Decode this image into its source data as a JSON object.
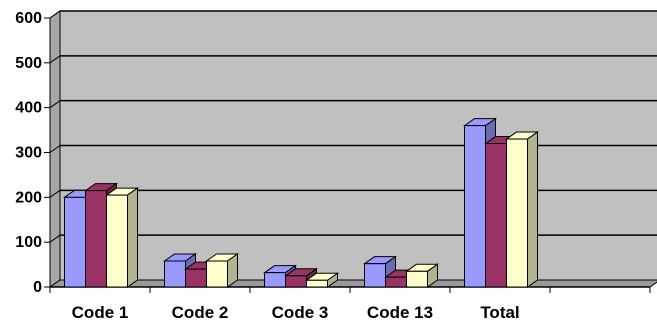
{
  "chart_data": {
    "type": "bar",
    "categories": [
      "Code 1",
      "Code 2",
      "Code 3",
      "Code 13",
      "Total",
      ""
    ],
    "series": [
      {
        "values": [
          200,
          58,
          32,
          52,
          360,
          null
        ],
        "color": "#9999ff"
      },
      {
        "values": [
          215,
          40,
          25,
          22,
          320,
          null
        ],
        "color": "#993366"
      },
      {
        "values": [
          205,
          58,
          15,
          35,
          330,
          null
        ],
        "color": "#ffffcc"
      }
    ],
    "ylim": [
      0,
      600
    ],
    "yticks": [
      0,
      100,
      200,
      300,
      400,
      500,
      600
    ],
    "grid": true,
    "three_d": true,
    "legend": "none"
  }
}
